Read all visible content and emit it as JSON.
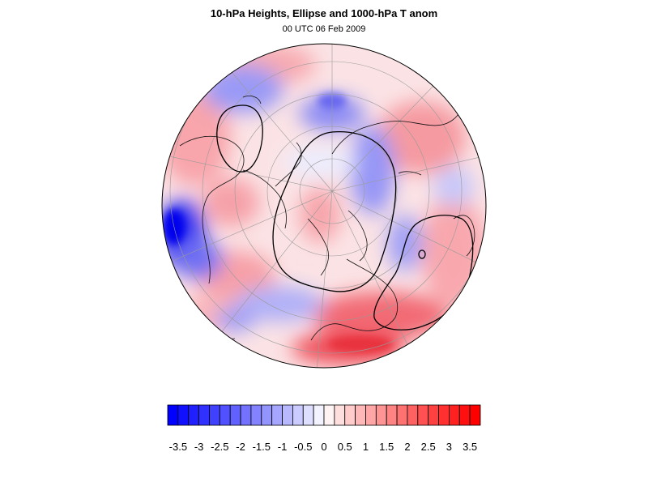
{
  "plot": {
    "title": "10-hPa Heights, Ellipse and 1000-hPa T anom",
    "subtitle": "00 UTC 06 Feb 2009"
  },
  "map": {
    "projection": "orthographic",
    "field": "temperature-anomaly",
    "contours": [
      "ellipse",
      "10-hPa height contour"
    ]
  },
  "colorbar": {
    "levels": [
      -3.75,
      -3.5,
      -3.25,
      -3,
      -2.75,
      -2.5,
      -2.25,
      -2,
      -1.75,
      -1.5,
      -1.25,
      -1,
      -0.75,
      -0.5,
      -0.25,
      0,
      0.25,
      0.5,
      0.75,
      1,
      1.25,
      1.5,
      1.75,
      2,
      2.25,
      2.5,
      2.75,
      3,
      3.25,
      3.5,
      3.75
    ],
    "labels": [
      "-3.5",
      "-3",
      "-2.5",
      "-2",
      "-1.5",
      "-1",
      "-0.5",
      "0",
      "0.5",
      "1",
      "1.5",
      "2",
      "2.5",
      "3",
      "3.5"
    ],
    "label_values": [
      -3.5,
      -3,
      -2.5,
      -2,
      -1.5,
      -1,
      -0.5,
      0,
      0.5,
      1,
      1.5,
      2,
      2.5,
      3,
      3.5
    ],
    "cold_color": "#0000ff",
    "warm_color": "#ff0000",
    "neutral_color": "#ffffff"
  }
}
